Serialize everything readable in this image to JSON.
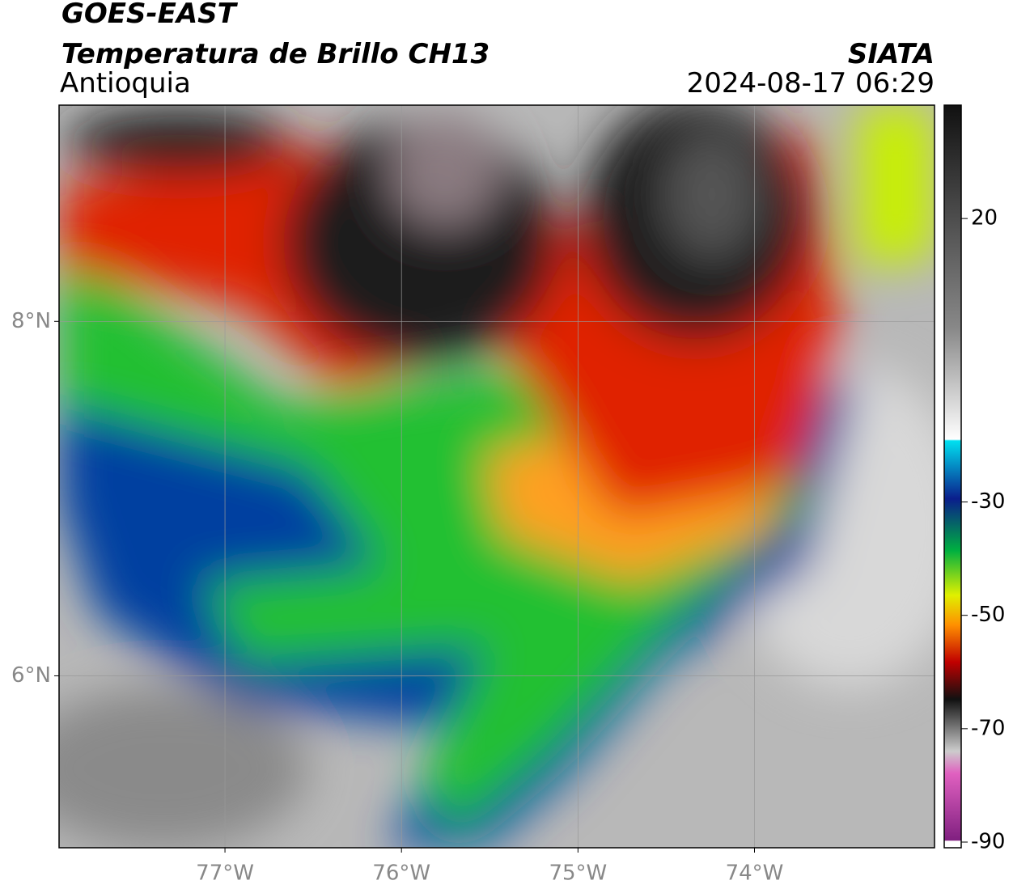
{
  "header": {
    "title": "GOES-EAST",
    "subtitle": "Temperatura de Brillo CH13",
    "region": "Antioquia",
    "source": "SIATA",
    "timestamp": "2024-08-17 06:29"
  },
  "map": {
    "xlim": [
      -77.94,
      -72.98
    ],
    "ylim": [
      5.03,
      9.22
    ],
    "xticks": [
      {
        "value": -77,
        "label": "77°W"
      },
      {
        "value": -76,
        "label": "76°W"
      },
      {
        "value": -75,
        "label": "75°W"
      },
      {
        "value": -74,
        "label": "74°W"
      }
    ],
    "yticks": [
      {
        "value": 8,
        "label": "8°N"
      },
      {
        "value": 6,
        "label": "6°N"
      }
    ]
  },
  "colorbar": {
    "range": [
      -91,
      40
    ],
    "ticks": [
      20,
      -30,
      -50,
      -70,
      -90
    ]
  }
}
